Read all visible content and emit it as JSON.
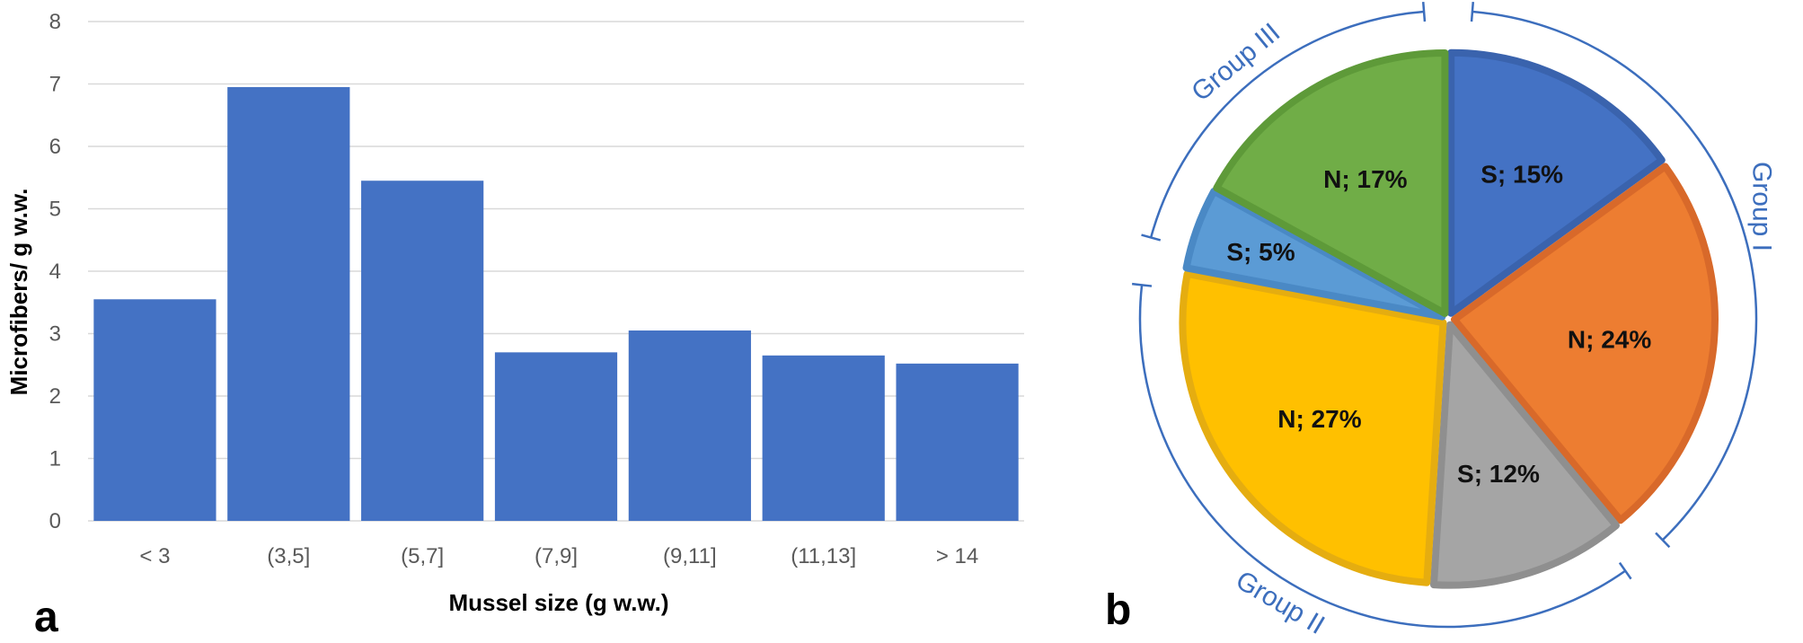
{
  "panel_a_letter": "a",
  "panel_b_letter": "b",
  "chart_data": [
    {
      "type": "bar",
      "categories": [
        "< 3",
        "(3,5]",
        "(5,7]",
        "(7,9]",
        "(9,11]",
        "(11,13]",
        "> 14"
      ],
      "values": [
        3.55,
        6.95,
        5.45,
        2.7,
        3.05,
        2.65,
        2.52
      ],
      "xlabel": "Mussel size (g w.w.)",
      "ylabel": "Microfibers/ g w.w.",
      "ylim": [
        0,
        8
      ],
      "yticks": [
        0,
        1,
        2,
        3,
        4,
        5,
        6,
        7,
        8
      ],
      "grid": true,
      "colors": {
        "bar": "#4472c4",
        "grid": "#d9d9d9"
      }
    },
    {
      "type": "pie",
      "slices": [
        {
          "label": "S; 15%",
          "value": 15,
          "color": "#4472c4",
          "border": "#3a63ad"
        },
        {
          "label": "N; 24%",
          "value": 24,
          "color": "#ed7d31",
          "border": "#d8692a"
        },
        {
          "label": "S; 12%",
          "value": 12,
          "color": "#a5a5a5",
          "border": "#8f8f8f"
        },
        {
          "label": "N; 27%",
          "value": 27,
          "color": "#ffc000",
          "border": "#e5ad10"
        },
        {
          "label": "S; 5%",
          "value": 5,
          "color": "#5b9bd5",
          "border": "#4a89c5"
        },
        {
          "label": "N; 17%",
          "value": 17,
          "color": "#70ad47",
          "border": "#5e9a39"
        }
      ],
      "groups": [
        {
          "label": "Group I",
          "start_pct": 0,
          "end_pct": 39
        },
        {
          "label": "Group II",
          "start_pct": 39,
          "end_pct": 78
        },
        {
          "label": "Group III",
          "start_pct": 78,
          "end_pct": 100
        }
      ],
      "colors": {
        "group_arc": "#3c6ebd"
      }
    }
  ]
}
